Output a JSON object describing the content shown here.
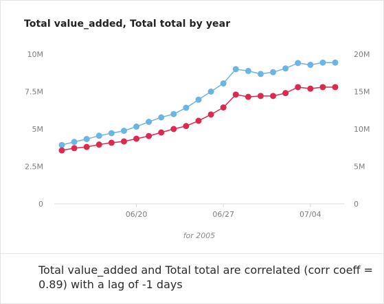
{
  "chart_data": {
    "type": "line",
    "title": "Total value_added, Total total by year",
    "footnote": "for 2005",
    "x": [
      "06/14",
      "06/15",
      "06/16",
      "06/17",
      "06/18",
      "06/19",
      "06/20",
      "06/21",
      "06/22",
      "06/23",
      "06/24",
      "06/25",
      "06/26",
      "06/27",
      "06/28",
      "06/29",
      "06/30",
      "07/01",
      "07/02",
      "07/03",
      "07/04",
      "07/05",
      "07/06"
    ],
    "xticks": [
      "06/20",
      "06/27",
      "07/04"
    ],
    "y_left": {
      "ticks": [
        "0",
        "2.5M",
        "5M",
        "7.5M",
        "10M"
      ],
      "ylim": [
        0,
        10000000
      ]
    },
    "y_right": {
      "ticks": [
        "0",
        "5M",
        "10M",
        "15M",
        "20M"
      ],
      "ylim": [
        0,
        20000000
      ]
    },
    "grid": false,
    "series": [
      {
        "axis": "left",
        "color": "#6cb4e4",
        "values": [
          3930000,
          4140000,
          4330000,
          4550000,
          4720000,
          4880000,
          5160000,
          5480000,
          5780000,
          6000000,
          6420000,
          6960000,
          7500000,
          8050000,
          9000000,
          8880000,
          8680000,
          8800000,
          9050000,
          9410000,
          9290000,
          9440000,
          9440000
        ]
      },
      {
        "axis": "right",
        "color": "#db2a4f",
        "values": [
          7140000,
          7440000,
          7600000,
          7920000,
          8160000,
          8340000,
          8700000,
          9060000,
          9540000,
          10000000,
          10400000,
          11100000,
          11940000,
          12880000,
          14600000,
          14300000,
          14420000,
          14420000,
          14800000,
          15600000,
          15400000,
          15600000,
          15600000
        ]
      }
    ]
  },
  "summary": "Total value_added and Total total are correlated (corr coeff = 0.89) with a lag of -1 days"
}
